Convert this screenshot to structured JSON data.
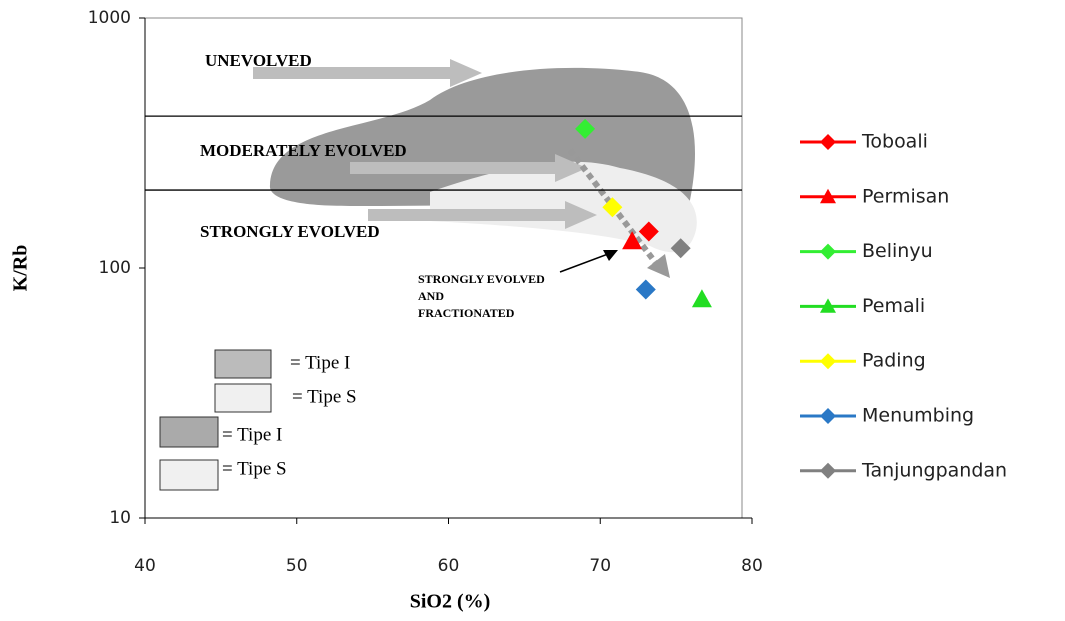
{
  "chart_data": {
    "type": "scatter",
    "x_label": "SiO2 (%)",
    "y_label": "K/Rb",
    "xlim": [
      40,
      80
    ],
    "xticks": [
      40,
      50,
      60,
      70,
      80
    ],
    "ylim": [
      10,
      1000
    ],
    "yticks": [
      10,
      100,
      1000
    ],
    "ylog": true,
    "boundaries": [
      405,
      205
    ],
    "annotations": [
      "UNEVOLVED",
      "MODERATELY EVOLVED",
      "STRONGLY EVOLVED"
    ],
    "fraction_note": [
      "STRONGLY EVOLVED",
      "AND",
      "FRACTIONATED"
    ],
    "region_legend": [
      "= Tipe I",
      "= Tipe S",
      "= Tipe I",
      "= Tipe S"
    ],
    "series": [
      {
        "name": "Toboali",
        "color": "#ff0000",
        "marker": "diamond",
        "x": [
          73.2
        ],
        "values": [
          140
        ]
      },
      {
        "name": "Permisan",
        "color": "#ff0000",
        "marker": "triangle",
        "x": [
          72.1
        ],
        "values": [
          128
        ]
      },
      {
        "name": "Belinyu",
        "color": "#33ee33",
        "marker": "diamond",
        "x": [
          69
        ],
        "values": [
          360
        ]
      },
      {
        "name": "Pemali",
        "color": "#22dd22",
        "marker": "triangle",
        "x": [
          76.7
        ],
        "values": [
          75
        ]
      },
      {
        "name": "Pading",
        "color": "#ffff00",
        "marker": "diamond",
        "x": [
          70.8
        ],
        "values": [
          175
        ]
      },
      {
        "name": "Menumbing",
        "color": "#2a78c6",
        "marker": "diamond",
        "x": [
          73
        ],
        "values": [
          82
        ]
      },
      {
        "name": "Tanjungpandan",
        "color": "#808080",
        "marker": "diamond",
        "x": [
          75.3
        ],
        "values": [
          120
        ]
      }
    ]
  }
}
